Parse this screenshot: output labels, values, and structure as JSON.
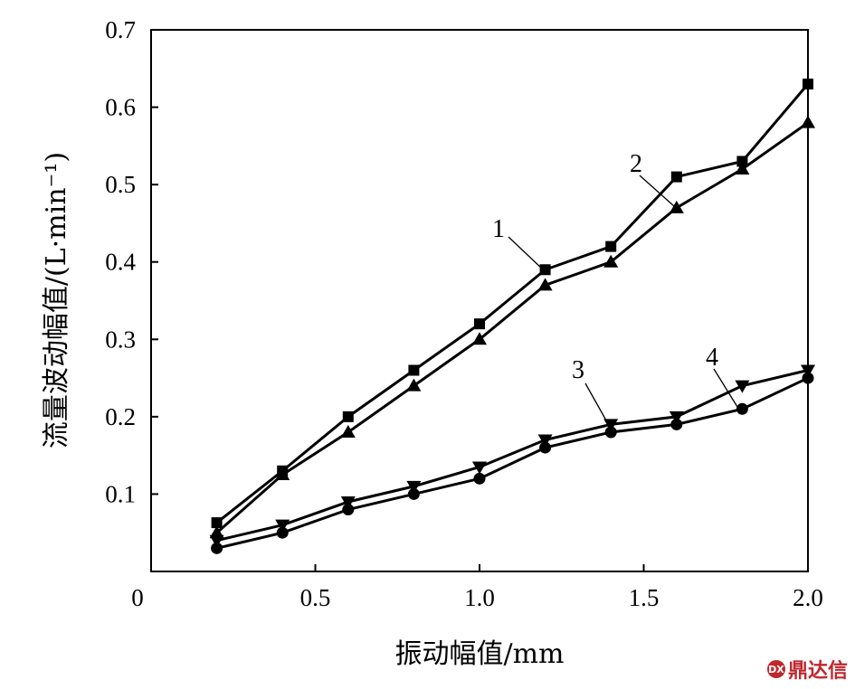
{
  "chart_data": {
    "type": "line",
    "title": "",
    "xlabel": "振动幅值/mm",
    "ylabel": "流量波动幅值/(L·min⁻¹)",
    "xlim": [
      0,
      2.0
    ],
    "ylim": [
      0,
      0.7
    ],
    "x_ticks": [
      "0",
      "0.5",
      "1.0",
      "1.5",
      "2.0"
    ],
    "y_ticks": [
      "0.1",
      "0.2",
      "0.3",
      "0.4",
      "0.5",
      "0.6",
      "0.7"
    ],
    "x": [
      0.2,
      0.4,
      0.6,
      0.8,
      1.0,
      1.2,
      1.4,
      1.6,
      1.8,
      2.0
    ],
    "grid": false,
    "series": [
      {
        "name": "1",
        "marker": "square",
        "values": [
          0.063,
          0.13,
          0.2,
          0.26,
          0.32,
          0.39,
          0.42,
          0.51,
          0.53,
          0.63
        ]
      },
      {
        "name": "2",
        "marker": "triangle-up",
        "values": [
          0.05,
          0.125,
          0.18,
          0.24,
          0.3,
          0.37,
          0.4,
          0.47,
          0.52,
          0.58
        ]
      },
      {
        "name": "3",
        "marker": "triangle-down",
        "values": [
          0.04,
          0.06,
          0.09,
          0.11,
          0.135,
          0.17,
          0.19,
          0.2,
          0.24,
          0.26
        ]
      },
      {
        "name": "4",
        "marker": "circle",
        "values": [
          0.03,
          0.05,
          0.08,
          0.1,
          0.12,
          0.16,
          0.18,
          0.19,
          0.21,
          0.25
        ]
      }
    ]
  },
  "watermark": {
    "text": "鼎达信",
    "logo_text": "DX"
  }
}
